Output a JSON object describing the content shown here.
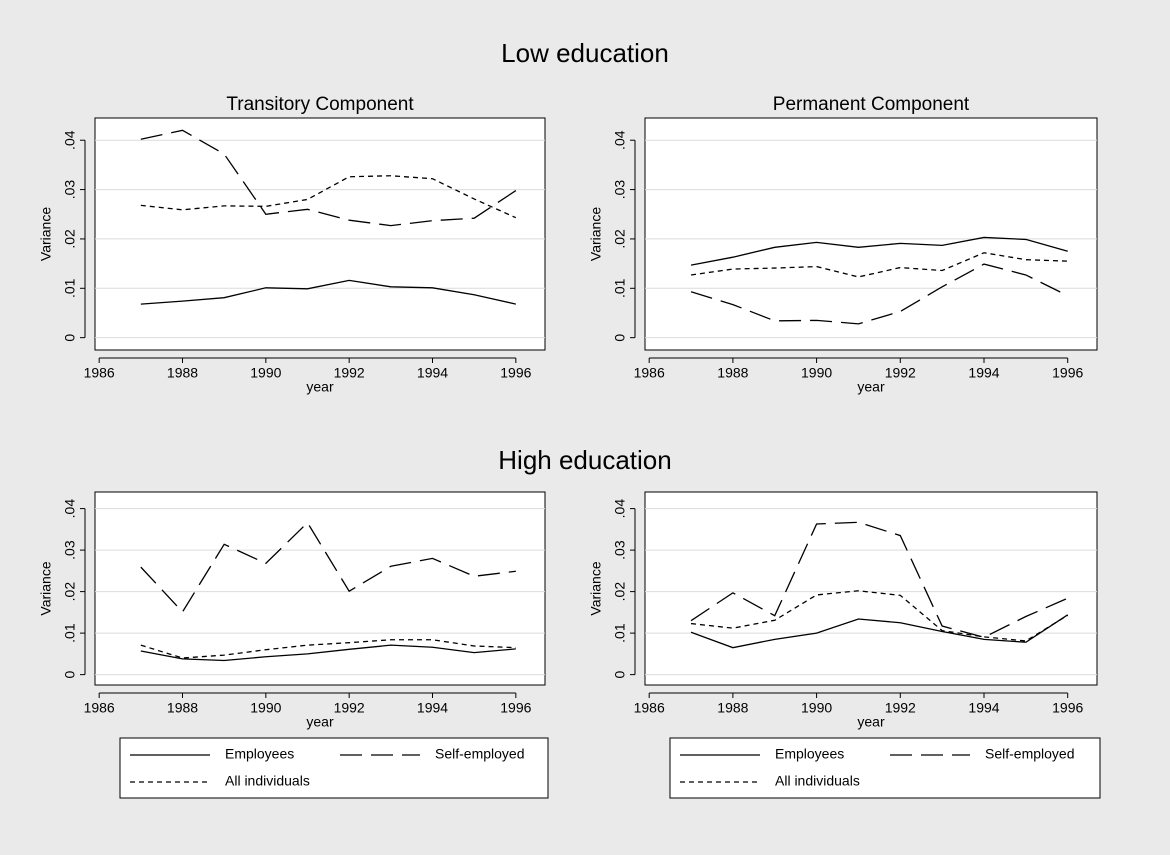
{
  "sections": [
    {
      "title": "Low education"
    },
    {
      "title": "High education"
    }
  ],
  "chart_data": [
    {
      "type": "line",
      "title": "Transitory Component",
      "x_label": "year",
      "y_label": "Variance",
      "grid": true,
      "x": [
        1987,
        1988,
        1989,
        1990,
        1991,
        1992,
        1993,
        1994,
        1995,
        1996
      ],
      "xlim": [
        1985.9,
        1996.7
      ],
      "xticks": [
        1986,
        1988,
        1990,
        1992,
        1994,
        1996
      ],
      "ylim": [
        -0.0025,
        0.0445
      ],
      "yticks": [
        0,
        {
          "value": 0.01,
          "label": ".01"
        },
        {
          "value": 0.02,
          "label": ".02"
        },
        {
          "value": 0.03,
          "label": ".03"
        },
        {
          "value": 0.04,
          "label": ".04"
        }
      ],
      "series": [
        {
          "color": "#000000",
          "dash": "solid",
          "values": [
            0.0068,
            0.0074,
            0.0081,
            0.0101,
            0.0099,
            0.0116,
            0.0103,
            0.0101,
            0.0087,
            0.0068
          ]
        },
        {
          "color": "#000000",
          "dash": "long",
          "values": [
            0.0402,
            0.042,
            0.0372,
            0.025,
            0.026,
            0.0238,
            0.0227,
            0.0237,
            0.0242,
            0.0298
          ]
        },
        {
          "color": "#000000",
          "dash": "short",
          "values": [
            0.0268,
            0.0259,
            0.0267,
            0.0266,
            0.028,
            0.0326,
            0.0328,
            0.0322,
            0.0281,
            0.0243
          ]
        }
      ]
    },
    {
      "type": "line",
      "title": "Permanent Component",
      "x_label": "year",
      "y_label": "Variance",
      "grid": true,
      "x": [
        1987,
        1988,
        1989,
        1990,
        1991,
        1992,
        1993,
        1994,
        1995,
        1996
      ],
      "xlim": [
        1985.9,
        1996.7
      ],
      "xticks": [
        1986,
        1988,
        1990,
        1992,
        1994,
        1996
      ],
      "ylim": [
        -0.0025,
        0.0445
      ],
      "yticks": [
        0,
        {
          "value": 0.01,
          "label": ".01"
        },
        {
          "value": 0.02,
          "label": ".02"
        },
        {
          "value": 0.03,
          "label": ".03"
        },
        {
          "value": 0.04,
          "label": ".04"
        }
      ],
      "series": [
        {
          "color": "#000000",
          "dash": "solid",
          "values": [
            0.0147,
            0.0163,
            0.0183,
            0.0193,
            0.0183,
            0.0191,
            0.0187,
            0.0203,
            0.0199,
            0.0175
          ]
        },
        {
          "color": "#000000",
          "dash": "long",
          "values": [
            0.0093,
            0.0067,
            0.0034,
            0.0035,
            0.0028,
            0.0053,
            0.0103,
            0.0149,
            0.0127,
            0.0085
          ]
        },
        {
          "color": "#000000",
          "dash": "short",
          "values": [
            0.0127,
            0.0139,
            0.0141,
            0.0144,
            0.0123,
            0.0142,
            0.0136,
            0.0172,
            0.0158,
            0.0155
          ]
        }
      ]
    },
    {
      "type": "line",
      "x_label": "year",
      "y_label": "Variance",
      "grid": true,
      "legend": "bottom",
      "x": [
        1987,
        1988,
        1989,
        1990,
        1991,
        1992,
        1993,
        1994,
        1995,
        1996
      ],
      "xlim": [
        1985.9,
        1996.7
      ],
      "xticks": [
        1986,
        1988,
        1990,
        1992,
        1994,
        1996
      ],
      "ylim": [
        -0.0025,
        0.044
      ],
      "yticks": [
        0,
        {
          "value": 0.01,
          "label": ".01"
        },
        {
          "value": 0.02,
          "label": ".02"
        },
        {
          "value": 0.03,
          "label": ".03"
        },
        {
          "value": 0.04,
          "label": ".04"
        }
      ],
      "series": [
        {
          "name": "Employees",
          "color": "#000000",
          "dash": "solid",
          "values": [
            0.0057,
            0.0038,
            0.0034,
            0.0043,
            0.005,
            0.0061,
            0.0071,
            0.0066,
            0.0053,
            0.0062
          ]
        },
        {
          "name": "Self-employed",
          "color": "#000000",
          "dash": "long",
          "values": [
            0.0259,
            0.0151,
            0.0314,
            0.0268,
            0.0366,
            0.0201,
            0.0261,
            0.028,
            0.0237,
            0.0249
          ]
        },
        {
          "name": "All individuals",
          "color": "#000000",
          "dash": "short",
          "values": [
            0.0071,
            0.004,
            0.0047,
            0.006,
            0.0071,
            0.0077,
            0.0084,
            0.0084,
            0.0069,
            0.0065
          ]
        }
      ]
    },
    {
      "type": "line",
      "x_label": "year",
      "y_label": "Variance",
      "grid": true,
      "legend": "bottom",
      "x": [
        1987,
        1988,
        1989,
        1990,
        1991,
        1992,
        1993,
        1994,
        1995,
        1996
      ],
      "xlim": [
        1985.9,
        1996.7
      ],
      "xticks": [
        1986,
        1988,
        1990,
        1992,
        1994,
        1996
      ],
      "ylim": [
        -0.0025,
        0.044
      ],
      "yticks": [
        0,
        {
          "value": 0.01,
          "label": ".01"
        },
        {
          "value": 0.02,
          "label": ".02"
        },
        {
          "value": 0.03,
          "label": ".03"
        },
        {
          "value": 0.04,
          "label": ".04"
        }
      ],
      "series": [
        {
          "name": "Employees",
          "color": "#000000",
          "dash": "solid",
          "values": [
            0.0102,
            0.0065,
            0.0085,
            0.01,
            0.0134,
            0.0125,
            0.0104,
            0.0085,
            0.0078,
            0.0144
          ]
        },
        {
          "name": "Self-employed",
          "color": "#000000",
          "dash": "long",
          "values": [
            0.013,
            0.0197,
            0.0142,
            0.0363,
            0.0367,
            0.0335,
            0.0117,
            0.009,
            0.014,
            0.0184
          ]
        },
        {
          "name": "All individuals",
          "color": "#000000",
          "dash": "short",
          "values": [
            0.0123,
            0.0112,
            0.0131,
            0.0192,
            0.0202,
            0.0191,
            0.0106,
            0.0091,
            0.0081,
            0.0143
          ]
        }
      ]
    }
  ]
}
